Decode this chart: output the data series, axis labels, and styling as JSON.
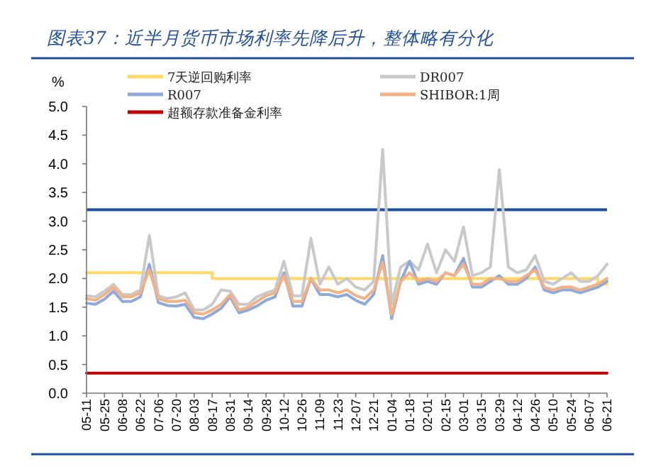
{
  "chart_data": {
    "type": "line",
    "title": "图表37：近半月货币市场利率先降后升，整体略有分化",
    "ylabel": "%",
    "categories": [
      "05-11",
      null,
      "05-25",
      null,
      "06-08",
      null,
      "06-22",
      null,
      "07-06",
      null,
      "07-20",
      null,
      "08-03",
      null,
      "08-17",
      null,
      "08-31",
      null,
      "09-14",
      null,
      "09-28",
      null,
      "10-12",
      null,
      "10-26",
      null,
      "11-09",
      null,
      "11-23",
      null,
      "12-07",
      null,
      "12-21",
      null,
      "01-04",
      null,
      "01-18",
      null,
      "02-01",
      null,
      "02-15",
      null,
      "03-01",
      null,
      "03-15",
      null,
      "03-29",
      null,
      "04-12",
      null,
      "04-26",
      null,
      "05-10",
      null,
      "05-24",
      null,
      "06-07",
      null,
      "06-21"
    ],
    "series": [
      {
        "name": "7天逆回购利率",
        "type": "step",
        "color": "#ffd966",
        "values": [
          2.1,
          2.1,
          2.1,
          2.1,
          2.1,
          2.1,
          2.1,
          2.1,
          2.1,
          2.1,
          2.1,
          2.1,
          2.1,
          2.1,
          2.0,
          2.0,
          2.0,
          2.0,
          2.0,
          2.0,
          2.0,
          2.0,
          2.0,
          2.0,
          2.0,
          2.0,
          2.0,
          2.0,
          2.0,
          2.0,
          2.0,
          2.0,
          2.0,
          2.0,
          2.0,
          2.0,
          2.0,
          2.0,
          2.0,
          2.0,
          2.0,
          2.0,
          2.0,
          2.0,
          2.0,
          2.0,
          2.0,
          2.0,
          2.0,
          2.0,
          2.0,
          2.0,
          2.0,
          2.0,
          2.0,
          2.0,
          2.0,
          1.9,
          1.9
        ]
      },
      {
        "name": "DR007",
        "color": "#c9c9c9",
        "values": [
          1.7,
          1.68,
          1.78,
          1.9,
          1.72,
          1.72,
          1.8,
          2.75,
          1.7,
          1.65,
          1.68,
          1.75,
          1.45,
          1.45,
          1.55,
          1.8,
          1.78,
          1.55,
          1.55,
          1.68,
          1.75,
          1.8,
          2.3,
          1.7,
          1.7,
          2.7,
          1.9,
          2.2,
          1.9,
          2.0,
          1.85,
          1.8,
          1.95,
          4.25,
          1.55,
          2.2,
          2.3,
          2.15,
          2.6,
          2.1,
          2.5,
          2.3,
          2.9,
          2.05,
          2.1,
          2.2,
          3.9,
          2.2,
          2.1,
          2.15,
          2.4,
          1.95,
          1.9,
          2.0,
          2.1,
          1.95,
          1.95,
          2.05,
          2.25
        ]
      },
      {
        "name": "R007",
        "color": "#8eaadb",
        "values": [
          1.57,
          1.55,
          1.64,
          1.78,
          1.6,
          1.6,
          1.68,
          2.25,
          1.58,
          1.53,
          1.52,
          1.55,
          1.32,
          1.3,
          1.38,
          1.48,
          1.68,
          1.4,
          1.45,
          1.52,
          1.62,
          1.68,
          2.1,
          1.52,
          1.52,
          2.0,
          1.72,
          1.72,
          1.68,
          1.72,
          1.62,
          1.55,
          1.72,
          2.4,
          1.3,
          1.95,
          2.3,
          1.9,
          1.95,
          1.9,
          2.1,
          2.05,
          2.35,
          1.85,
          1.85,
          1.95,
          2.05,
          1.9,
          1.9,
          2.0,
          2.2,
          1.8,
          1.75,
          1.8,
          1.8,
          1.75,
          1.8,
          1.85,
          1.95
        ]
      },
      {
        "name": "SHIBOR:1周",
        "color": "#f4b183",
        "values": [
          1.65,
          1.62,
          1.72,
          1.85,
          1.68,
          1.68,
          1.75,
          2.15,
          1.65,
          1.6,
          1.6,
          1.62,
          1.4,
          1.38,
          1.45,
          1.55,
          1.72,
          1.45,
          1.5,
          1.6,
          1.7,
          1.75,
          2.05,
          1.6,
          1.6,
          2.0,
          1.8,
          1.8,
          1.75,
          1.8,
          1.7,
          1.65,
          1.8,
          2.28,
          1.37,
          1.95,
          2.1,
          1.95,
          2.0,
          1.95,
          2.1,
          2.05,
          2.25,
          1.9,
          1.9,
          2.0,
          2.0,
          1.95,
          1.95,
          2.05,
          2.15,
          1.85,
          1.8,
          1.85,
          1.85,
          1.8,
          1.85,
          1.9,
          2.0
        ]
      },
      {
        "name": "超额存款准备金利率",
        "color": "#c00000",
        "values": [
          0.35,
          0.35,
          0.35,
          0.35,
          0.35,
          0.35,
          0.35,
          0.35,
          0.35,
          0.35,
          0.35,
          0.35,
          0.35,
          0.35,
          0.35,
          0.35,
          0.35,
          0.35,
          0.35,
          0.35,
          0.35,
          0.35,
          0.35,
          0.35,
          0.35,
          0.35,
          0.35,
          0.35,
          0.35,
          0.35,
          0.35,
          0.35,
          0.35,
          0.35,
          0.35,
          0.35,
          0.35,
          0.35,
          0.35,
          0.35,
          0.35,
          0.35,
          0.35,
          0.35,
          0.35,
          0.35,
          0.35,
          0.35,
          0.35,
          0.35,
          0.35,
          0.35,
          0.35,
          0.35,
          0.35,
          0.35,
          0.35,
          0.35,
          0.35
        ]
      }
    ],
    "ref_lines": [
      {
        "axis": "y",
        "value": 3.2,
        "color": "#1f4e9c"
      }
    ],
    "ylim": [
      0,
      5
    ],
    "yticks": [
      {
        "value": 0,
        "label": "0.0"
      },
      {
        "value": 0.5,
        "label": "0.5"
      },
      {
        "value": 1,
        "label": "1.0"
      },
      {
        "value": 1.5,
        "label": "1.5"
      },
      {
        "value": 2,
        "label": "2.0"
      },
      {
        "value": 2.5,
        "label": "2.5"
      },
      {
        "value": 3,
        "label": "3.0"
      },
      {
        "value": 3.5,
        "label": "3.5"
      },
      {
        "value": 4,
        "label": "4.0"
      },
      {
        "value": 4.5,
        "label": "4.5"
      },
      {
        "value": 5,
        "label": "5.0"
      }
    ],
    "legend": "top",
    "marker": "none",
    "line_style": "solid"
  }
}
